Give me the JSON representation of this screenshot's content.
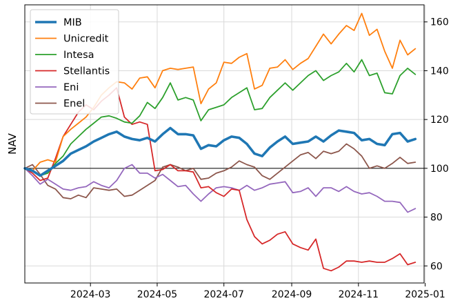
{
  "chart_data": {
    "type": "line",
    "title": "",
    "xlabel": "",
    "ylabel": "NAV",
    "xlim": [
      "2024-01-01",
      "2024-12-31"
    ],
    "ylim": [
      53,
      167
    ],
    "x_ticks": [
      "2024-03",
      "2024-05",
      "2024-07",
      "2024-09",
      "2024-11",
      "2025-01"
    ],
    "y_ticks": [
      60,
      80,
      100,
      120,
      140,
      160
    ],
    "y_axis_side": "right",
    "grid": true,
    "reference_line": 100,
    "legend_position": "top-left",
    "x": [
      "2024-01-01",
      "2024-01-08",
      "2024-01-15",
      "2024-01-22",
      "2024-01-29",
      "2024-02-05",
      "2024-02-12",
      "2024-02-19",
      "2024-02-26",
      "2024-03-04",
      "2024-03-11",
      "2024-03-18",
      "2024-03-25",
      "2024-04-01",
      "2024-04-08",
      "2024-04-15",
      "2024-04-22",
      "2024-04-29",
      "2024-05-06",
      "2024-05-13",
      "2024-05-20",
      "2024-05-27",
      "2024-06-03",
      "2024-06-10",
      "2024-06-17",
      "2024-06-24",
      "2024-07-01",
      "2024-07-08",
      "2024-07-15",
      "2024-07-22",
      "2024-07-29",
      "2024-08-05",
      "2024-08-12",
      "2024-08-19",
      "2024-08-26",
      "2024-09-02",
      "2024-09-09",
      "2024-09-16",
      "2024-09-23",
      "2024-09-30",
      "2024-10-07",
      "2024-10-14",
      "2024-10-21",
      "2024-10-28",
      "2024-11-04",
      "2024-11-11",
      "2024-11-18",
      "2024-11-25",
      "2024-12-02",
      "2024-12-09",
      "2024-12-16",
      "2024-12-23"
    ],
    "series": [
      {
        "name": "MIB",
        "color": "#1f77b4",
        "width": 3.6,
        "values": [
          100,
          99,
          97,
          99,
          101,
          103,
          106,
          107.5,
          109,
          111,
          112.5,
          114,
          115,
          113,
          112,
          111.5,
          112.5,
          111,
          114,
          116.5,
          114,
          114,
          113.5,
          108,
          109.5,
          109,
          111.5,
          113,
          112.5,
          110,
          106,
          105,
          108.5,
          111,
          113,
          110,
          110.5,
          111,
          113,
          111,
          113.5,
          115.5,
          115,
          114.5,
          111.5,
          112,
          110,
          109.5,
          114,
          114.5,
          111,
          112
        ]
      },
      {
        "name": "Unicredit",
        "color": "#ff7f0e",
        "width": 1.8,
        "values": [
          100,
          99,
          102.5,
          103.5,
          102.5,
          113,
          116,
          118.5,
          121,
          125,
          130,
          133,
          135.5,
          135,
          132.5,
          137,
          137.5,
          133,
          140,
          141,
          140.5,
          141,
          141.5,
          126.5,
          132.5,
          135,
          143.5,
          143,
          145.5,
          147,
          132.5,
          134,
          141,
          141.5,
          144.5,
          140.5,
          143,
          145,
          150,
          155,
          151,
          155,
          158.5,
          156.5,
          163.5,
          154.5,
          157,
          148,
          141,
          152.5,
          146.5,
          149
        ]
      },
      {
        "name": "Intesa",
        "color": "#2ca02c",
        "width": 1.8,
        "values": [
          100,
          99,
          97,
          98,
          102,
          105,
          110,
          113,
          116,
          118.5,
          121,
          121.5,
          120.5,
          119,
          118.5,
          121.5,
          127,
          124.5,
          129,
          135,
          128,
          129,
          128,
          119.5,
          124,
          125,
          126,
          129,
          131,
          133,
          124,
          124.5,
          129,
          132,
          135,
          132,
          135,
          138,
          140,
          136,
          138,
          139.5,
          143,
          139.5,
          144.5,
          138,
          139,
          131,
          130.5,
          138,
          141,
          138.5
        ]
      },
      {
        "name": "Stellantis",
        "color": "#d62728",
        "width": 1.8,
        "values": [
          100,
          98,
          95,
          96,
          104,
          113,
          118,
          123,
          126,
          124,
          127.5,
          130,
          133,
          121,
          118,
          119,
          118,
          99,
          99.5,
          101.5,
          99,
          99,
          98.5,
          92,
          92.5,
          90,
          88.5,
          91.5,
          91,
          79,
          72,
          69,
          70.5,
          73,
          74,
          69,
          67.5,
          66.5,
          71,
          59,
          58,
          59.5,
          62,
          62,
          61.5,
          62,
          61.5,
          61.5,
          63,
          65,
          60.5,
          61.5
        ]
      },
      {
        "name": "Eni",
        "color": "#9467bd",
        "width": 1.8,
        "values": [
          100,
          97,
          93.5,
          95.5,
          93.5,
          91.5,
          91,
          92,
          92.5,
          94.5,
          93,
          92,
          95,
          100,
          101.5,
          98,
          98,
          96,
          97.5,
          95,
          92.5,
          93,
          89.5,
          86.5,
          89.5,
          92,
          92.5,
          92,
          91,
          93,
          91,
          92,
          93.5,
          94,
          94.5,
          90,
          90.5,
          92,
          88.5,
          92,
          92,
          90.5,
          92.5,
          90.5,
          89.5,
          90,
          88.5,
          86.5,
          86.5,
          86,
          82,
          83.5
        ]
      },
      {
        "name": "Enel",
        "color": "#8c564b",
        "width": 1.8,
        "values": [
          100,
          101.5,
          97.5,
          93,
          91.5,
          88,
          87.5,
          89,
          88,
          92,
          91.5,
          91,
          91.5,
          88.5,
          89,
          91,
          93,
          95,
          100.5,
          101.5,
          100.5,
          99,
          100,
          95.5,
          96,
          98,
          99,
          100.5,
          103,
          101.5,
          100.5,
          97,
          95.5,
          98,
          100.5,
          103,
          105.5,
          106.5,
          104,
          107,
          106,
          107,
          110,
          108,
          105,
          100,
          101,
          100,
          102,
          104.5,
          102,
          102.5
        ]
      }
    ]
  }
}
